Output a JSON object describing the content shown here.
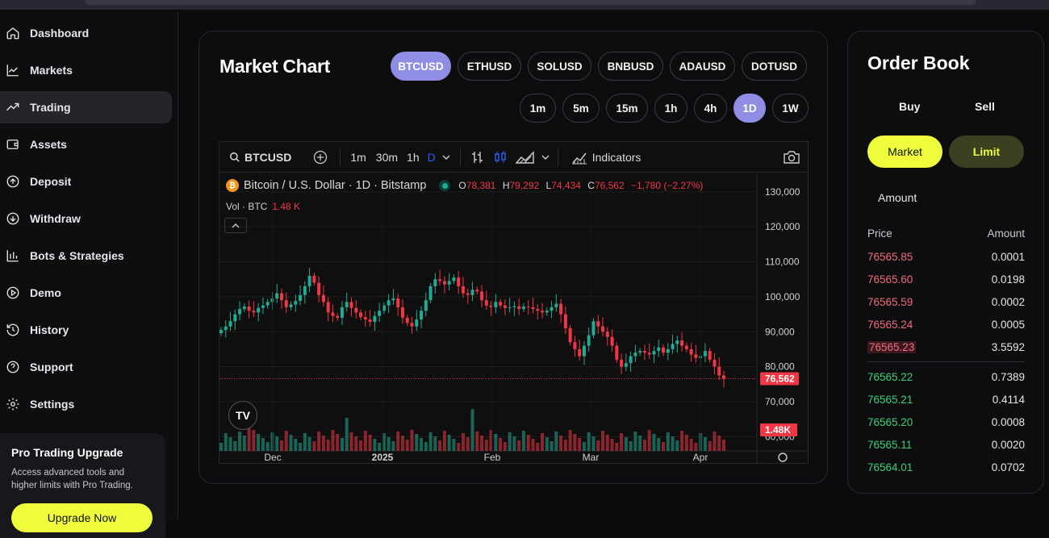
{
  "sidebar": {
    "items": [
      {
        "label": "Dashboard",
        "icon": "home-icon"
      },
      {
        "label": "Markets",
        "icon": "line-chart-icon"
      },
      {
        "label": "Trading",
        "icon": "trending-up-icon",
        "active": true
      },
      {
        "label": "Assets",
        "icon": "wallet-icon"
      },
      {
        "label": "Deposit",
        "icon": "arrow-up-circle-icon"
      },
      {
        "label": "Withdraw",
        "icon": "arrow-down-circle-icon"
      },
      {
        "label": "Bots & Strategies",
        "icon": "bar-chart-icon"
      },
      {
        "label": "Demo",
        "icon": "play-circle-icon"
      },
      {
        "label": "History",
        "icon": "history-icon"
      },
      {
        "label": "Support",
        "icon": "help-circle-icon"
      },
      {
        "label": "Settings",
        "icon": "gear-icon"
      }
    ],
    "promo": {
      "title": "Pro Trading Upgrade",
      "description": "Access advanced tools and higher limits with Pro Trading.",
      "button": "Upgrade Now"
    }
  },
  "chart_card": {
    "title": "Market Chart",
    "symbols": [
      "BTCUSD",
      "ETHUSD",
      "SOLUSD",
      "BNBUSD",
      "ADAUSD",
      "DOTUSD"
    ],
    "active_symbol": "BTCUSD",
    "timeframes": [
      "1m",
      "5m",
      "15m",
      "1h",
      "4h",
      "1D",
      "1W"
    ],
    "active_timeframe": "1D"
  },
  "widget": {
    "toolbar": {
      "symbol": "BTCUSD",
      "intervals": [
        "1m",
        "30m",
        "1h",
        "D"
      ],
      "indicators_label": "Indicators"
    },
    "legend": {
      "title": "Bitcoin / U.S. Dollar · 1D · Bitstamp",
      "o_label": "O",
      "o": "78,381",
      "h_label": "H",
      "h": "79,292",
      "l_label": "L",
      "l": "74,434",
      "c_label": "C",
      "c": "76,562",
      "change": "−1,780 (−2.27%)",
      "vol_label": "Vol · BTC",
      "vol": "1.48 K"
    },
    "logo": "TV"
  },
  "chart_data": {
    "type": "candlestick",
    "title": "Bitcoin / U.S. Dollar · 1D · Bitstamp",
    "x_tick_labels": [
      "Dec",
      "2025",
      "Feb",
      "Mar",
      "Apr"
    ],
    "y_tick_labels": [
      "130,000",
      "120,000",
      "110,000",
      "100,000",
      "90,000",
      "80,000",
      "70,000",
      "60,000"
    ],
    "ylim": [
      55000,
      132500
    ],
    "last_price": 76562,
    "last_price_label": "76,562",
    "volume_label": "1.48K",
    "close_series": [
      90500,
      91500,
      93000,
      95000,
      96500,
      97200,
      96000,
      95500,
      96800,
      97500,
      98500,
      99500,
      101000,
      99000,
      97000,
      97800,
      98800,
      100500,
      103000,
      106000,
      104000,
      100500,
      98500,
      95500,
      94500,
      94000,
      97000,
      98500,
      96800,
      95500,
      94200,
      93500,
      92800,
      94500,
      96000,
      97500,
      99000,
      99500,
      97000,
      94000,
      92500,
      91500,
      93500,
      96000,
      99000,
      103000,
      105000,
      104500,
      103500,
      104500,
      105500,
      103000,
      101000,
      100500,
      102000,
      101500,
      99000,
      97500,
      97000,
      98500,
      97500,
      96800,
      97000,
      97300,
      96500,
      97200,
      97000,
      96500,
      96000,
      95500,
      96000,
      97000,
      98000,
      95000,
      91000,
      87000,
      85000,
      83000,
      86000,
      89000,
      93000,
      91500,
      90000,
      88500,
      86000,
      82000,
      80000,
      81000,
      83000,
      84000,
      84500,
      84000,
      83500,
      84500,
      85500,
      84000,
      85000,
      86500,
      87500,
      86000,
      85000,
      83500,
      82500,
      83000,
      84500,
      82000,
      80000,
      77500,
      76562
    ]
  },
  "order_book": {
    "title": "Order Book",
    "tabs": [
      "Buy",
      "Sell"
    ],
    "order_types": [
      "Market",
      "Limit"
    ],
    "amount_placeholder": "Amount",
    "headers": {
      "price": "Price",
      "amount": "Amount"
    },
    "asks": [
      {
        "price": "76565.85",
        "amount": "0.0001"
      },
      {
        "price": "76565.60",
        "amount": "0.0198"
      },
      {
        "price": "76565.59",
        "amount": "0.0002"
      },
      {
        "price": "76565.24",
        "amount": "0.0005"
      },
      {
        "price": "76565.23",
        "amount": "3.5592"
      }
    ],
    "bids": [
      {
        "price": "76565.22",
        "amount": "0.7389"
      },
      {
        "price": "76565.21",
        "amount": "0.4114"
      },
      {
        "price": "76565.20",
        "amount": "0.0008"
      },
      {
        "price": "76565.11",
        "amount": "0.0020"
      },
      {
        "price": "76564.01",
        "amount": "0.0702"
      }
    ]
  },
  "colors": {
    "accent_purple": "#8f8de4",
    "accent_yellow": "#eefc3c",
    "up": "#22ab94",
    "down": "#f23645",
    "ask": "#f06c7a",
    "bid": "#3cd07a"
  }
}
